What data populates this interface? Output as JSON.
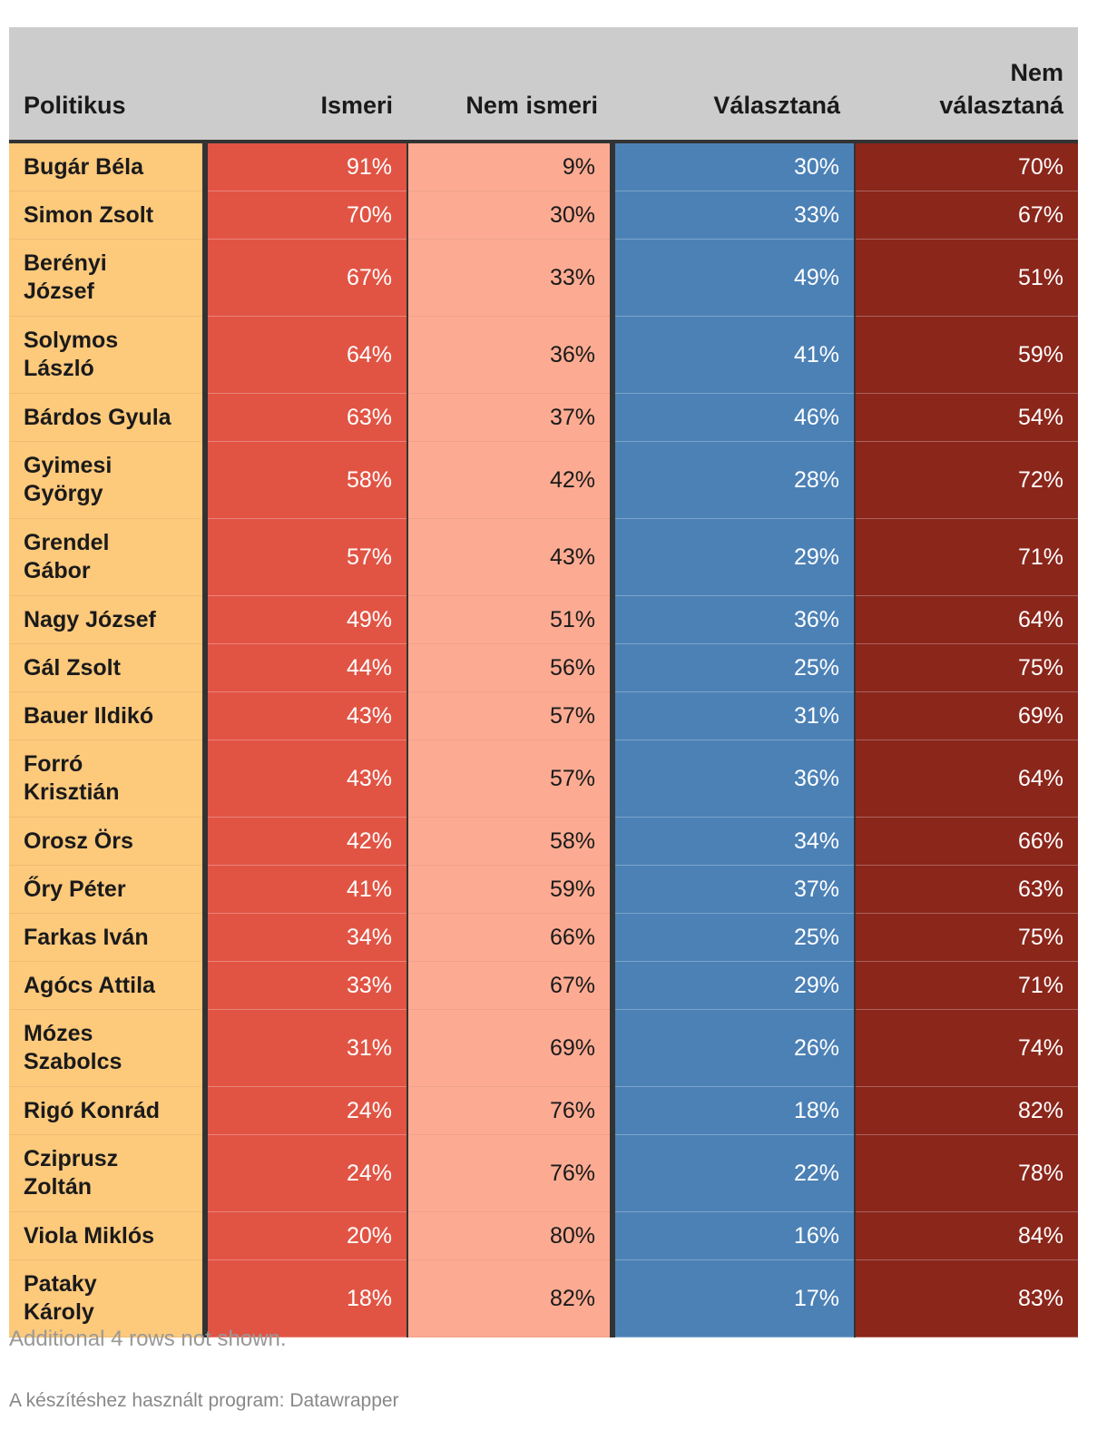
{
  "chart_data": {
    "type": "table",
    "columns": [
      "Politikus",
      "Ismeri",
      "Nem ismeri",
      "Választaná",
      "Nem választaná"
    ],
    "rows": [
      {
        "name": "Bugár Béla",
        "ismeri": "91%",
        "nem_ismeri": "9%",
        "valasztana": "30%",
        "nem_valasztana": "70%"
      },
      {
        "name": "Simon Zsolt",
        "ismeri": "70%",
        "nem_ismeri": "30%",
        "valasztana": "33%",
        "nem_valasztana": "67%"
      },
      {
        "name": "Berényi József",
        "ismeri": "67%",
        "nem_ismeri": "33%",
        "valasztana": "49%",
        "nem_valasztana": "51%"
      },
      {
        "name": "Solymos László",
        "ismeri": "64%",
        "nem_ismeri": "36%",
        "valasztana": "41%",
        "nem_valasztana": "59%"
      },
      {
        "name": "Bárdos Gyula",
        "ismeri": "63%",
        "nem_ismeri": "37%",
        "valasztana": "46%",
        "nem_valasztana": "54%"
      },
      {
        "name": "Gyimesi György",
        "ismeri": "58%",
        "nem_ismeri": "42%",
        "valasztana": "28%",
        "nem_valasztana": "72%"
      },
      {
        "name": "Grendel Gábor",
        "ismeri": "57%",
        "nem_ismeri": "43%",
        "valasztana": "29%",
        "nem_valasztana": "71%"
      },
      {
        "name": "Nagy József",
        "ismeri": "49%",
        "nem_ismeri": "51%",
        "valasztana": "36%",
        "nem_valasztana": "64%"
      },
      {
        "name": "Gál Zsolt",
        "ismeri": "44%",
        "nem_ismeri": "56%",
        "valasztana": "25%",
        "nem_valasztana": "75%"
      },
      {
        "name": "Bauer Ildikó",
        "ismeri": "43%",
        "nem_ismeri": "57%",
        "valasztana": "31%",
        "nem_valasztana": "69%"
      },
      {
        "name": "Forró Krisztián",
        "ismeri": "43%",
        "nem_ismeri": "57%",
        "valasztana": "36%",
        "nem_valasztana": "64%"
      },
      {
        "name": "Orosz Örs",
        "ismeri": "42%",
        "nem_ismeri": "58%",
        "valasztana": "34%",
        "nem_valasztana": "66%"
      },
      {
        "name": "Őry Péter",
        "ismeri": "41%",
        "nem_ismeri": "59%",
        "valasztana": "37%",
        "nem_valasztana": "63%"
      },
      {
        "name": "Farkas Iván",
        "ismeri": "34%",
        "nem_ismeri": "66%",
        "valasztana": "25%",
        "nem_valasztana": "75%"
      },
      {
        "name": "Agócs Attila",
        "ismeri": "33%",
        "nem_ismeri": "67%",
        "valasztana": "29%",
        "nem_valasztana": "71%"
      },
      {
        "name": "Mózes Szabolcs",
        "ismeri": "31%",
        "nem_ismeri": "69%",
        "valasztana": "26%",
        "nem_valasztana": "74%"
      },
      {
        "name": "Rigó Konrád",
        "ismeri": "24%",
        "nem_ismeri": "76%",
        "valasztana": "18%",
        "nem_valasztana": "82%"
      },
      {
        "name": "Cziprusz Zoltán",
        "ismeri": "24%",
        "nem_ismeri": "76%",
        "valasztana": "22%",
        "nem_valasztana": "78%"
      },
      {
        "name": "Viola Miklós",
        "ismeri": "20%",
        "nem_ismeri": "80%",
        "valasztana": "16%",
        "nem_valasztana": "84%"
      },
      {
        "name": "Pataky Károly",
        "ismeri": "18%",
        "nem_ismeri": "82%",
        "valasztana": "17%",
        "nem_valasztana": "83%"
      }
    ],
    "colors": {
      "header_bg": "#cccccc",
      "name_col": "#fdc97b",
      "ismeri": "#e15444",
      "nem_ismeri": "#fcab92",
      "valasztana": "#4c81b6",
      "nem_valasztana": "#8b261b"
    }
  },
  "footer": {
    "note": "Additional 4 rows not shown.",
    "credit": "A készítéshez használt program: Datawrapper"
  }
}
